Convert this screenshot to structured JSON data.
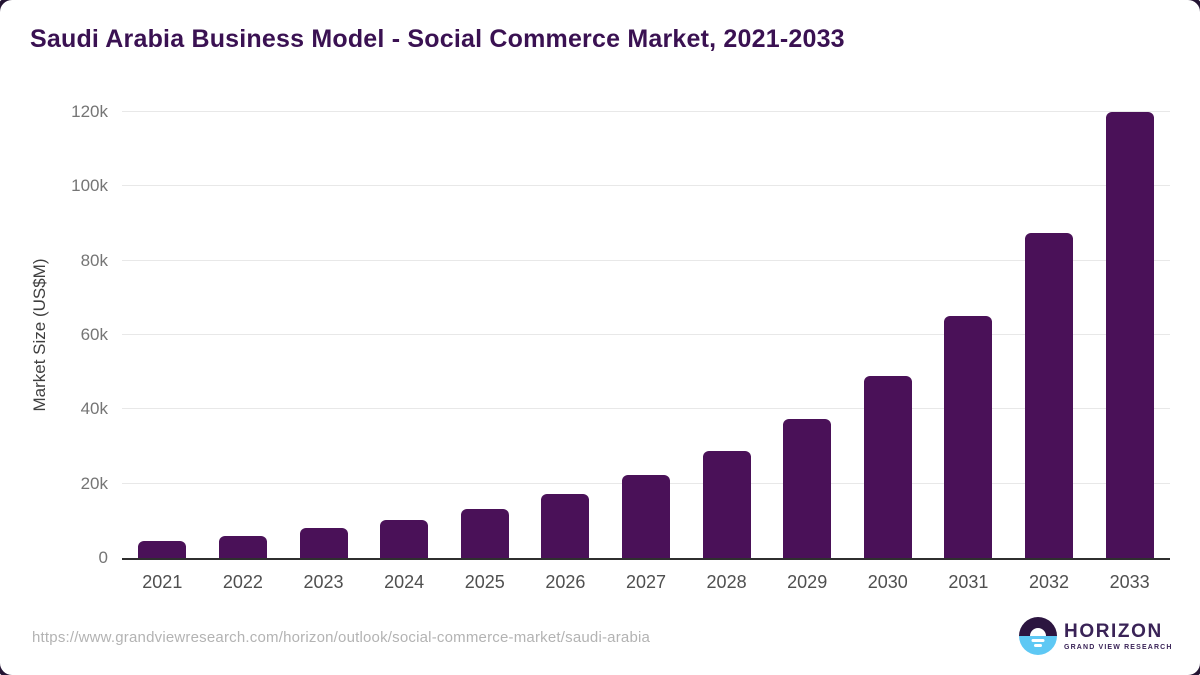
{
  "title": "Saudi Arabia Business Model - Social Commerce Market, 2021-2033",
  "chart_data": {
    "type": "bar",
    "title": "Saudi Arabia Business Model - Social Commerce Market, 2021-2033",
    "categories": [
      "2021",
      "2022",
      "2023",
      "2024",
      "2025",
      "2026",
      "2027",
      "2028",
      "2029",
      "2030",
      "2031",
      "2032",
      "2033"
    ],
    "values": [
      4500,
      6000,
      8000,
      10200,
      13100,
      17300,
      22400,
      28900,
      37500,
      49000,
      65000,
      87500,
      120000
    ],
    "xlabel": "",
    "ylabel": "Market Size (US$M)",
    "ylim": [
      0,
      120000
    ],
    "yticks": [
      {
        "value": 0,
        "label": "0"
      },
      {
        "value": 20000,
        "label": "20k"
      },
      {
        "value": 40000,
        "label": "40k"
      },
      {
        "value": 60000,
        "label": "60k"
      },
      {
        "value": 80000,
        "label": "80k"
      },
      {
        "value": 100000,
        "label": "100k"
      },
      {
        "value": 120000,
        "label": "120k"
      }
    ],
    "grid": true,
    "legend": false,
    "bar_color": "#4a1158"
  },
  "footer": {
    "source_url": "https://www.grandviewresearch.com/horizon/outlook/social-commerce-market/saudi-arabia",
    "logo": {
      "brand": "HORIZON",
      "subtitle": "GRAND VIEW RESEARCH"
    }
  },
  "colors": {
    "bar": "#4a1158",
    "title_text": "#3a1152",
    "gridline": "#e8e8e8",
    "axis_line": "#2f2f2f",
    "tick_text": "#757575",
    "logo_purple": "#2c1540",
    "logo_blue": "#5ec8f4"
  }
}
